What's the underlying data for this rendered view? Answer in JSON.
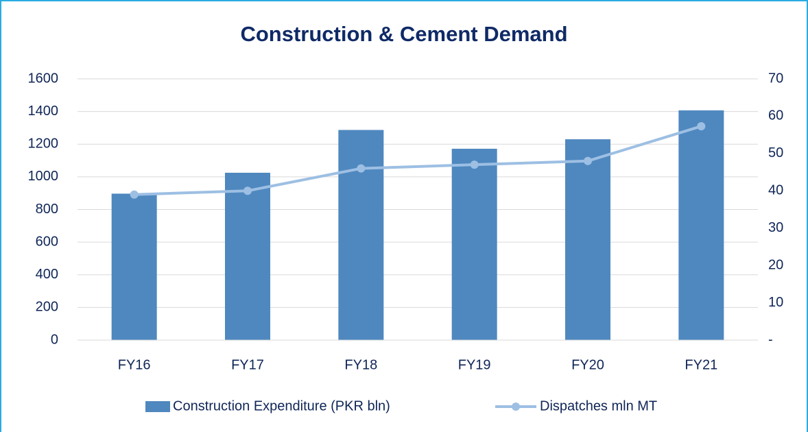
{
  "chart_data": {
    "type": "bar",
    "title": "Construction & Cement Demand",
    "categories": [
      "FY16",
      "FY17",
      "FY18",
      "FY19",
      "FY20",
      "FY21"
    ],
    "series": [
      {
        "name": "Construction Expenditure (PKR bln)",
        "type": "bar",
        "color": "#4f88bf",
        "values": [
          897,
          1025,
          1287,
          1172,
          1230,
          1407
        ]
      },
      {
        "name": "Dispatches mln MT",
        "type": "line",
        "axis": "y2",
        "color": "#9dbfe3",
        "values": [
          39,
          40,
          46,
          47,
          48,
          57.3
        ]
      }
    ],
    "ylim": [
      0,
      1600
    ],
    "yticks": [
      0,
      200,
      400,
      600,
      800,
      1000,
      1200,
      1400,
      1600
    ],
    "y2lim": [
      0,
      70
    ],
    "y2ticks": [
      {
        "value": 0,
        "label": "-"
      },
      10,
      20,
      30,
      40,
      50,
      60,
      70
    ],
    "grid": true,
    "legend": "bottom"
  }
}
